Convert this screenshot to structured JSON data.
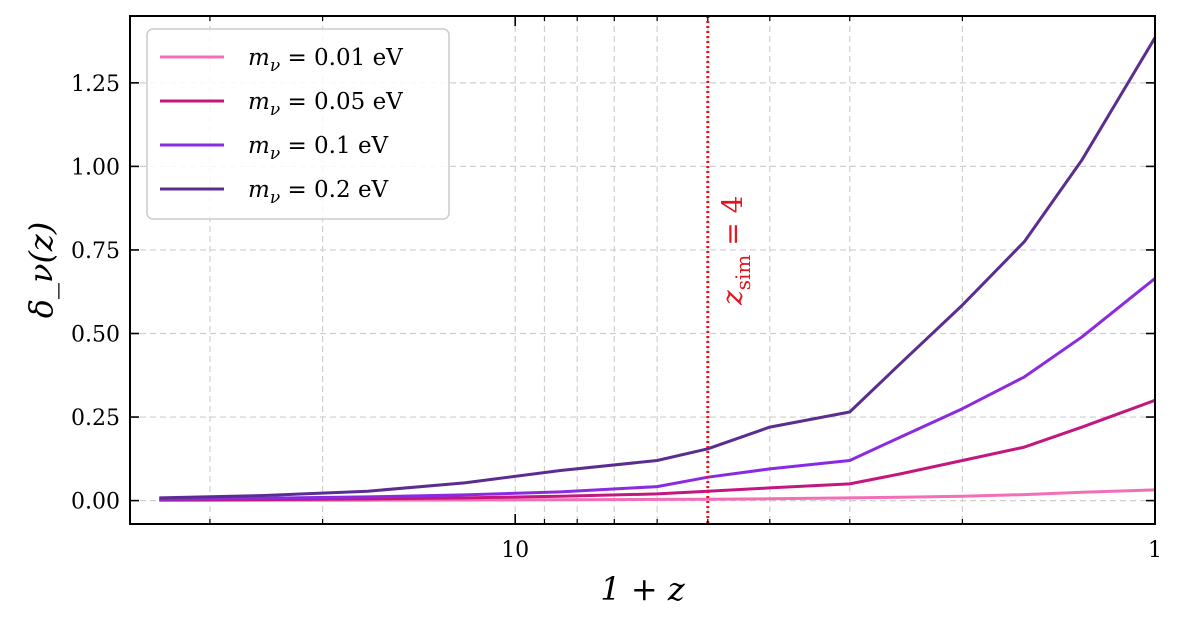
{
  "chart_data": {
    "type": "line",
    "xlabel": "1 + z",
    "ylabel": "δ_ν(z)",
    "x_axis": {
      "scale": "log",
      "direction": "reversed",
      "range": [
        40,
        1
      ],
      "tick_labels": [
        {
          "value": 10,
          "label": "10"
        },
        {
          "value": 1,
          "label": "1"
        }
      ],
      "minor_ticks": [
        40,
        30,
        20,
        9,
        8,
        7,
        6,
        5,
        4,
        3,
        2
      ]
    },
    "y_axis": {
      "scale": "linear",
      "range": [
        -0.07,
        1.45
      ],
      "ticks": [
        0.0,
        0.25,
        0.5,
        0.75,
        1.0,
        1.25
      ],
      "tick_labels": [
        "0.00",
        "0.25",
        "0.50",
        "0.75",
        "1.00",
        "1.25"
      ]
    },
    "grid": true,
    "legend": {
      "placement": "top-left",
      "entries": [
        {
          "prefix": "m",
          "sub": "ν",
          "suffix": " = 0.01 eV",
          "color": "#f26eb7"
        },
        {
          "prefix": "m",
          "sub": "ν",
          "suffix": " = 0.05 eV",
          "color": "#c2177f"
        },
        {
          "prefix": "m",
          "sub": "ν",
          "suffix": " = 0.1 eV",
          "color": "#8a2be2"
        },
        {
          "prefix": "m",
          "sub": "ν",
          "suffix": " = 0.2 eV",
          "color": "#5c2d91"
        }
      ]
    },
    "annotation": {
      "x": 5,
      "color": "#e3141e",
      "style": "dotted",
      "text_main": "z",
      "text_sub": "sim",
      "text_rest": " = 4"
    },
    "series": [
      {
        "name": "m_ν = 0.01 eV",
        "color": "#f26eb7",
        "x": [
          36,
          25,
          17,
          12,
          8.5,
          6,
          5,
          4,
          3,
          2.5,
          2,
          1.6,
          1.3,
          1
        ],
        "y": [
          0.0005,
          0.0008,
          0.0012,
          0.0018,
          0.0025,
          0.0035,
          0.004,
          0.0055,
          0.008,
          0.01,
          0.013,
          0.018,
          0.025,
          0.032
        ]
      },
      {
        "name": "m_ν = 0.05 eV",
        "color": "#c2177f",
        "x": [
          36,
          25,
          17,
          12,
          8.5,
          6,
          5,
          4,
          3,
          2.5,
          2,
          1.6,
          1.3,
          1
        ],
        "y": [
          0.002,
          0.003,
          0.005,
          0.008,
          0.013,
          0.02,
          0.028,
          0.038,
          0.05,
          0.08,
          0.12,
          0.16,
          0.22,
          0.3
        ]
      },
      {
        "name": "m_ν = 0.1 eV",
        "color": "#8a2be2",
        "x": [
          36,
          25,
          17,
          12,
          8.5,
          6,
          5,
          4,
          3,
          2.5,
          2,
          1.6,
          1.3,
          1
        ],
        "y": [
          0.004,
          0.007,
          0.011,
          0.017,
          0.026,
          0.042,
          0.07,
          0.095,
          0.12,
          0.19,
          0.275,
          0.37,
          0.49,
          0.665
        ]
      },
      {
        "name": "m_ν = 0.2 eV",
        "color": "#5c2d91",
        "x": [
          36,
          25,
          17,
          12,
          8.5,
          6,
          5,
          4,
          3,
          2.5,
          2,
          1.6,
          1.3,
          1
        ],
        "y": [
          0.008,
          0.015,
          0.028,
          0.053,
          0.09,
          0.12,
          0.155,
          0.22,
          0.265,
          0.41,
          0.585,
          0.775,
          1.02,
          1.385
        ]
      }
    ]
  }
}
